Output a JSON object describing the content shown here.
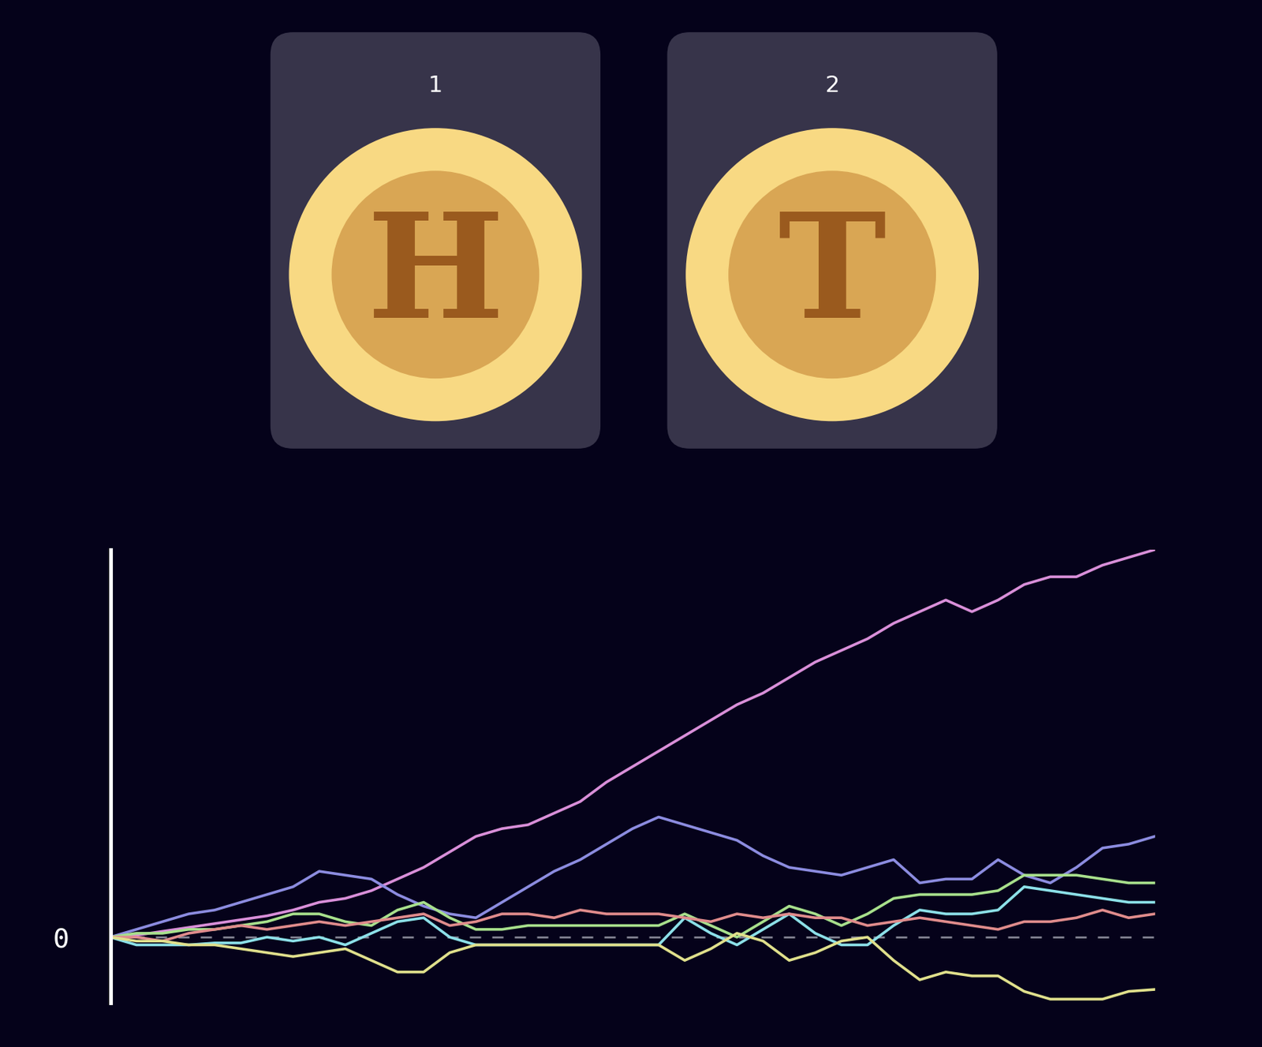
{
  "cards": [
    {
      "label": "1",
      "face": "H"
    },
    {
      "label": "2",
      "face": "T"
    }
  ],
  "chart_data": {
    "type": "line",
    "x": [
      0,
      1,
      2,
      3,
      4,
      5,
      6,
      7,
      8,
      9,
      10,
      11,
      12,
      13,
      14,
      15,
      16,
      17,
      18,
      19,
      20,
      21,
      22,
      23,
      24,
      25,
      26,
      27,
      28,
      29,
      30,
      31,
      32,
      33,
      34,
      35,
      36,
      37,
      38,
      39,
      40
    ],
    "xlim": [
      0,
      40
    ],
    "ylim": [
      -17,
      100
    ],
    "yticks": [
      0
    ],
    "grid": true,
    "tick_labels": "y",
    "series": [
      {
        "color": "#d98fd9",
        "values": [
          0,
          0.5,
          1.5,
          2.5,
          3.5,
          4.5,
          5.5,
          7,
          9,
          10,
          12,
          15,
          18,
          22,
          26,
          28,
          29,
          32,
          35,
          40,
          44,
          48,
          52,
          56,
          60,
          63,
          67,
          71,
          74,
          77,
          81,
          84,
          87,
          84,
          87,
          91,
          93,
          93,
          96,
          98,
          100
        ]
      },
      {
        "color": "#8c8ce0",
        "values": [
          0,
          2,
          4,
          6,
          7,
          9,
          11,
          13,
          17,
          16,
          15,
          11,
          8,
          6,
          5,
          9,
          13,
          17,
          20,
          24,
          28,
          31,
          29,
          27,
          25,
          21,
          18,
          17,
          16,
          18,
          20,
          14,
          15,
          15,
          20,
          16,
          14,
          18,
          23,
          24,
          26
        ]
      },
      {
        "color": "#a8e08c",
        "values": [
          0,
          1,
          1,
          2,
          2,
          3,
          4,
          6,
          6,
          4,
          3,
          7,
          9,
          5,
          2,
          2,
          3,
          3,
          3,
          3,
          3,
          3,
          6,
          3,
          0,
          4,
          8,
          6,
          3,
          6,
          10,
          11,
          11,
          11,
          12,
          16,
          16,
          16,
          15,
          14,
          14
        ]
      },
      {
        "color": "#8ce0e8",
        "values": [
          0,
          -2,
          -2,
          -2,
          -1.5,
          -1.5,
          0,
          -1,
          0,
          -2,
          1,
          4,
          5,
          0,
          -2,
          -2,
          -2,
          -2,
          -2,
          -2,
          -2,
          -2,
          5,
          1,
          -2,
          2,
          6,
          1,
          -2,
          -2,
          3,
          7,
          6,
          6,
          7,
          13,
          12,
          11,
          10,
          9,
          9
        ]
      },
      {
        "color": "#e08c8c",
        "values": [
          0,
          0,
          -1,
          1,
          2,
          3,
          2,
          3,
          4,
          3,
          4,
          5,
          6,
          3,
          4,
          6,
          6,
          5,
          7,
          6,
          6,
          6,
          5,
          4,
          6,
          5,
          6,
          5,
          5,
          3,
          4,
          5,
          4,
          3,
          2,
          4,
          4,
          5,
          7,
          5,
          6
        ]
      },
      {
        "color": "#e0e08c",
        "values": [
          0,
          -1,
          -1,
          -2,
          -2,
          -3,
          -4,
          -5,
          -4,
          -3,
          -6,
          -9,
          -9,
          -4,
          -2,
          -2,
          -2,
          -2,
          -2,
          -2,
          -2,
          -2,
          -6,
          -3,
          1,
          -1,
          -6,
          -4,
          -1,
          0,
          -6,
          -11,
          -9,
          -10,
          -10,
          -14,
          -16,
          -16,
          -16,
          -14,
          -13.5
        ]
      }
    ]
  }
}
